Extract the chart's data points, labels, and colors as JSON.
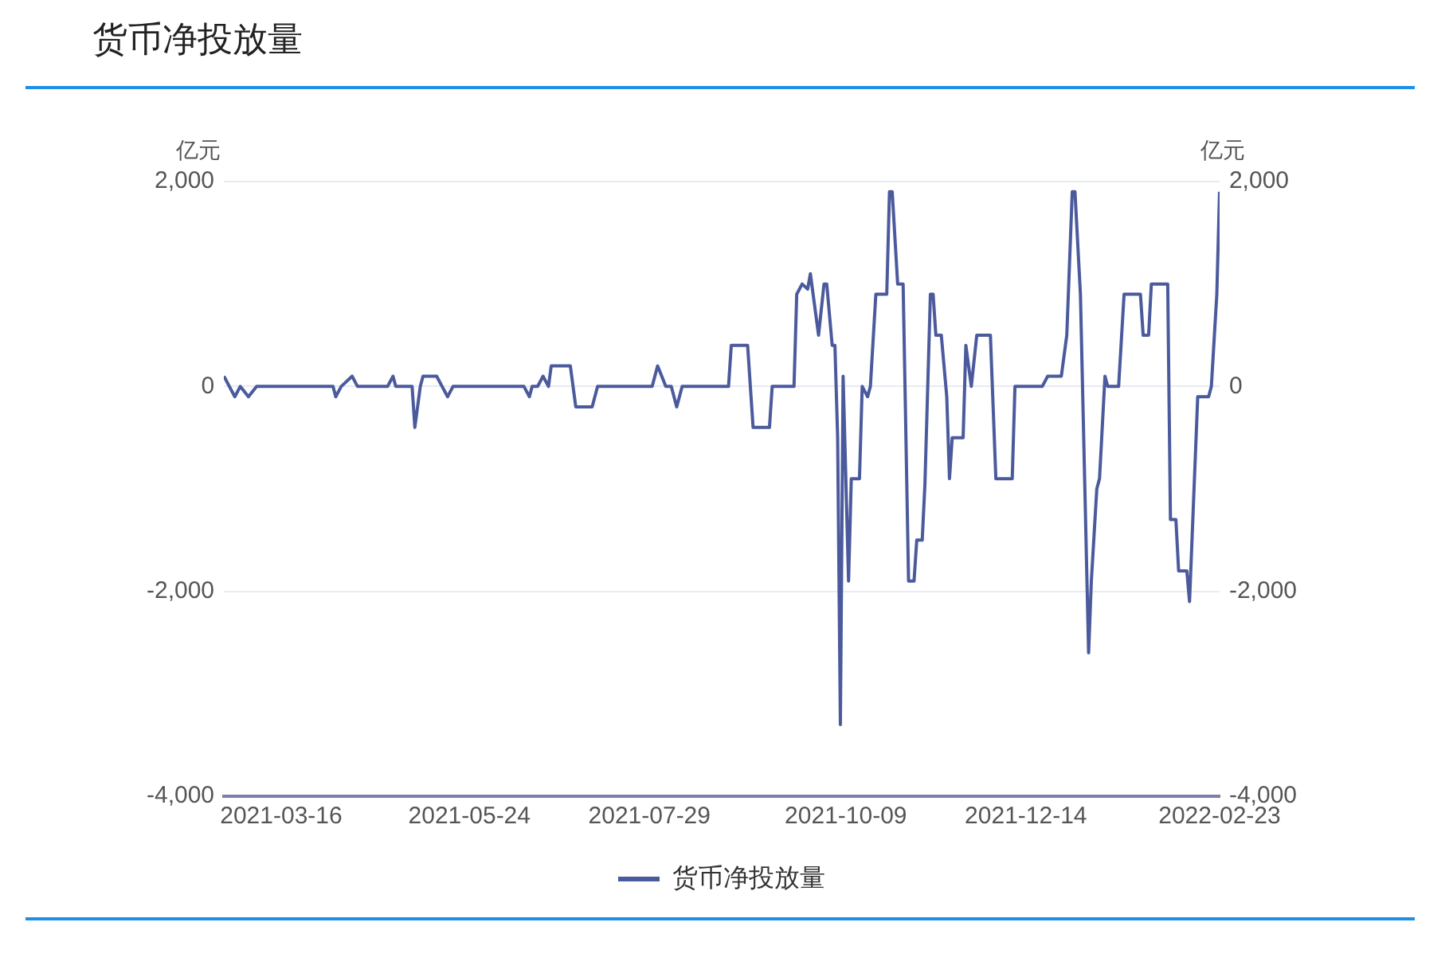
{
  "chart_data": {
    "type": "line",
    "title": "货币净投放量",
    "ylabel": "亿元",
    "y2label": "亿元",
    "x": [
      "2021-02-23",
      "2021-02-27",
      "2021-03-01",
      "2021-03-04",
      "2021-03-07",
      "2021-04-04",
      "2021-04-05",
      "2021-04-07",
      "2021-04-11",
      "2021-04-13",
      "2021-04-24",
      "2021-04-26",
      "2021-04-27",
      "2021-05-03",
      "2021-05-04",
      "2021-05-06",
      "2021-05-07",
      "2021-05-12",
      "2021-05-14",
      "2021-05-16",
      "2021-05-18",
      "2021-06-13",
      "2021-06-15",
      "2021-06-16",
      "2021-06-18",
      "2021-06-20",
      "2021-06-22",
      "2021-06-23",
      "2021-06-30",
      "2021-07-02",
      "2021-07-08",
      "2021-07-10",
      "2021-07-30",
      "2021-08-01",
      "2021-08-04",
      "2021-08-06",
      "2021-08-08",
      "2021-08-10",
      "2021-08-27",
      "2021-08-28",
      "2021-09-03",
      "2021-09-05",
      "2021-09-11",
      "2021-09-12",
      "2021-09-20",
      "2021-09-21",
      "2021-09-23",
      "2021-09-25",
      "2021-09-26",
      "2021-09-27",
      "2021-09-29",
      "2021-10-01",
      "2021-10-02",
      "2021-10-04",
      "2021-10-05",
      "2021-10-06",
      "2021-10-07",
      "2021-10-08",
      "2021-10-10",
      "2021-10-11",
      "2021-10-14",
      "2021-10-15",
      "2021-10-17",
      "2021-10-18",
      "2021-10-20",
      "2021-10-24",
      "2021-10-25",
      "2021-10-26",
      "2021-10-28",
      "2021-10-30",
      "2021-11-01",
      "2021-11-03",
      "2021-11-04",
      "2021-11-06",
      "2021-11-07",
      "2021-11-09",
      "2021-11-10",
      "2021-11-11",
      "2021-11-13",
      "2021-11-15",
      "2021-11-16",
      "2021-11-17",
      "2021-11-21",
      "2021-11-22",
      "2021-11-24",
      "2021-11-26",
      "2021-12-01",
      "2021-12-03",
      "2021-12-09",
      "2021-12-10",
      "2021-12-20",
      "2021-12-22",
      "2021-12-27",
      "2021-12-29",
      "2021-12-31",
      "2022-01-01",
      "2022-01-03",
      "2022-01-06",
      "2022-01-07",
      "2022-01-09",
      "2022-01-10",
      "2022-01-12",
      "2022-01-13",
      "2022-01-17",
      "2022-01-19",
      "2022-01-25",
      "2022-01-26",
      "2022-01-28",
      "2022-01-29",
      "2022-02-04",
      "2022-02-05",
      "2022-02-07",
      "2022-02-08",
      "2022-02-11",
      "2022-02-12",
      "2022-02-15",
      "2022-02-19",
      "2022-02-20",
      "2022-02-22",
      "2022-02-23"
    ],
    "series": [
      {
        "name": "货币净投放量",
        "color": "#4b5a9c",
        "values": [
          100,
          -100,
          0,
          -100,
          0,
          0,
          -100,
          0,
          100,
          0,
          0,
          100,
          0,
          0,
          -400,
          0,
          100,
          100,
          0,
          -100,
          0,
          0,
          -100,
          0,
          0,
          100,
          0,
          200,
          200,
          -200,
          -200,
          0,
          0,
          200,
          0,
          0,
          -200,
          0,
          0,
          400,
          400,
          -400,
          -400,
          0,
          0,
          900,
          1000,
          950,
          1100,
          900,
          500,
          1000,
          1000,
          400,
          400,
          -500,
          -3300,
          100,
          -1900,
          -900,
          -900,
          0,
          -100,
          0,
          900,
          900,
          1900,
          1900,
          1000,
          1000,
          -1900,
          -1900,
          -1500,
          -1500,
          -950,
          900,
          900,
          500,
          500,
          -100,
          -900,
          -500,
          -500,
          400,
          0,
          500,
          500,
          -900,
          -900,
          0,
          0,
          100,
          100,
          500,
          1900,
          1900,
          900,
          -2600,
          -1900,
          -1000,
          -900,
          100,
          0,
          0,
          900,
          900,
          500,
          500,
          1000,
          1000,
          -1300,
          -1300,
          -1800,
          -1800,
          -2100,
          -100,
          -100,
          0,
          900,
          1900
        ]
      }
    ],
    "xlim": [
      "2021-02-23",
      "2022-02-23"
    ],
    "xticks": [
      "2021-03-16",
      "2021-05-24",
      "2021-07-29",
      "2021-10-09",
      "2021-12-14",
      "2022-02-23"
    ],
    "ylim": [
      -4000,
      2000
    ],
    "yticks": [
      {
        "value": -4000,
        "label": "-4,000"
      },
      {
        "value": -2000,
        "label": "-2,000"
      },
      0,
      {
        "value": 2000,
        "label": "2,000"
      }
    ],
    "y2lim": [
      -4000,
      2000
    ],
    "y2ticks": [
      {
        "value": -4000,
        "label": "-4,000"
      },
      {
        "value": -2000,
        "label": "-2,000"
      },
      0,
      {
        "value": 2000,
        "label": "2,000"
      }
    ],
    "grid": "y",
    "legend": "bottom",
    "marker": "none",
    "line_style": "solid"
  }
}
